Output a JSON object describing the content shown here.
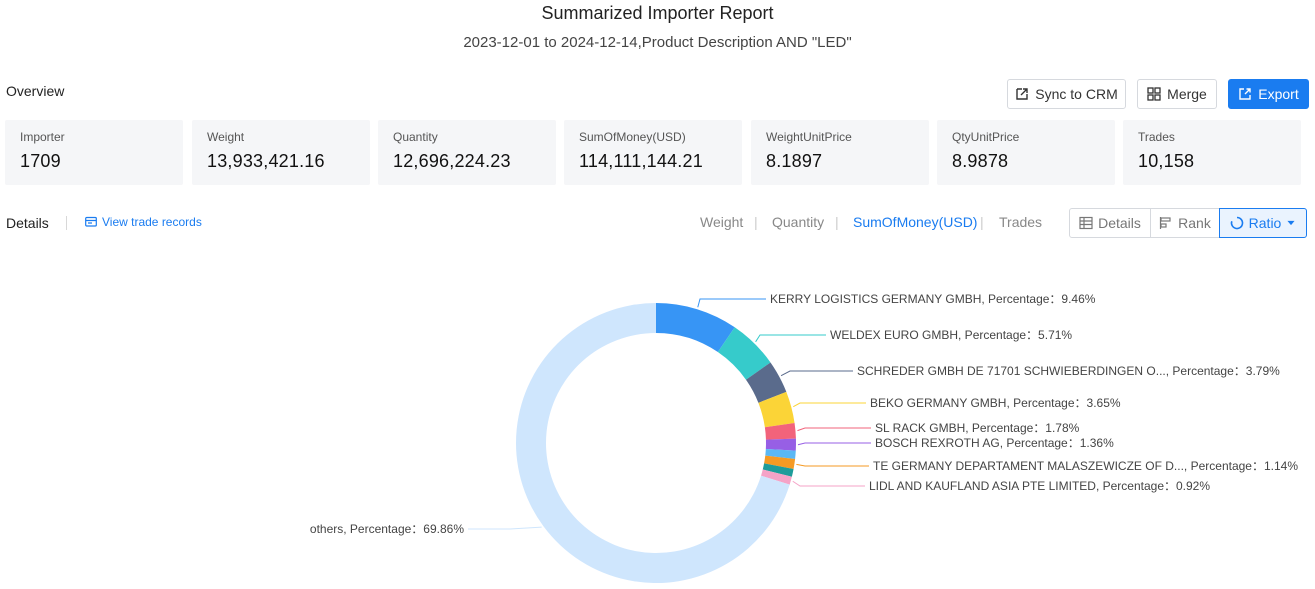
{
  "report": {
    "title": "Summarized Importer Report",
    "subtitle": "2023-12-01 to 2024-12-14,Product Description AND \"LED\""
  },
  "overview": {
    "label": "Overview",
    "buttons": {
      "sync": "Sync to CRM",
      "merge": "Merge",
      "export": "Export"
    },
    "cards": [
      {
        "label": "Importer",
        "value": "1709"
      },
      {
        "label": "Weight",
        "value": "13,933,421.16"
      },
      {
        "label": "Quantity",
        "value": "12,696,224.23"
      },
      {
        "label": "SumOfMoney(USD)",
        "value": "114,111,144.21"
      },
      {
        "label": "WeightUnitPrice",
        "value": "8.1897"
      },
      {
        "label": "QtyUnitPrice",
        "value": "8.9878"
      },
      {
        "label": "Trades",
        "value": "10,158"
      }
    ]
  },
  "details": {
    "label": "Details",
    "view_records": "View trade records",
    "metric_tabs": [
      "Weight",
      "Quantity",
      "SumOfMoney(USD)",
      "Trades"
    ],
    "active_metric": "SumOfMoney(USD)",
    "view_buttons": {
      "details": "Details",
      "rank": "Rank",
      "ratio": "Ratio"
    }
  },
  "chart_data": {
    "type": "pie",
    "donut": true,
    "metric": "SumOfMoney(USD)",
    "slices": [
      {
        "name": "KERRY LOGISTICS GERMANY GMBH",
        "value": 9.46,
        "color": "#3795f5"
      },
      {
        "name": "WELDEX EURO GMBH",
        "value": 5.71,
        "color": "#36cbcb"
      },
      {
        "name": "SCHREDER GMBH DE 71701 SCHWIEBERDINGEN O...",
        "value": 3.79,
        "color": "#5a6b8c"
      },
      {
        "name": "BEKO GERMANY GMBH",
        "value": 3.65,
        "color": "#fbd437"
      },
      {
        "name": "SL RACK GMBH",
        "value": 1.78,
        "color": "#f2637b"
      },
      {
        "name": "BOSCH REXROTH AG",
        "value": 1.36,
        "color": "#975fe5"
      },
      {
        "name": "",
        "value": 0.95,
        "color": "#5ab8f5"
      },
      {
        "name": "TE GERMANY DEPARTAMENT MALASZEWICZE OF D...",
        "value": 1.14,
        "color": "#f59a23"
      },
      {
        "name": "",
        "value": 0.9,
        "color": "#1e9c9a"
      },
      {
        "name": "LIDL AND KAUFLAND ASIA PTE LIMITED",
        "value": 0.92,
        "color": "#f5a3c7"
      },
      {
        "name": "others",
        "value": 69.86,
        "color": "#cfe6fd"
      }
    ],
    "label_prefix": "Percentage",
    "label_suffix": "%"
  }
}
